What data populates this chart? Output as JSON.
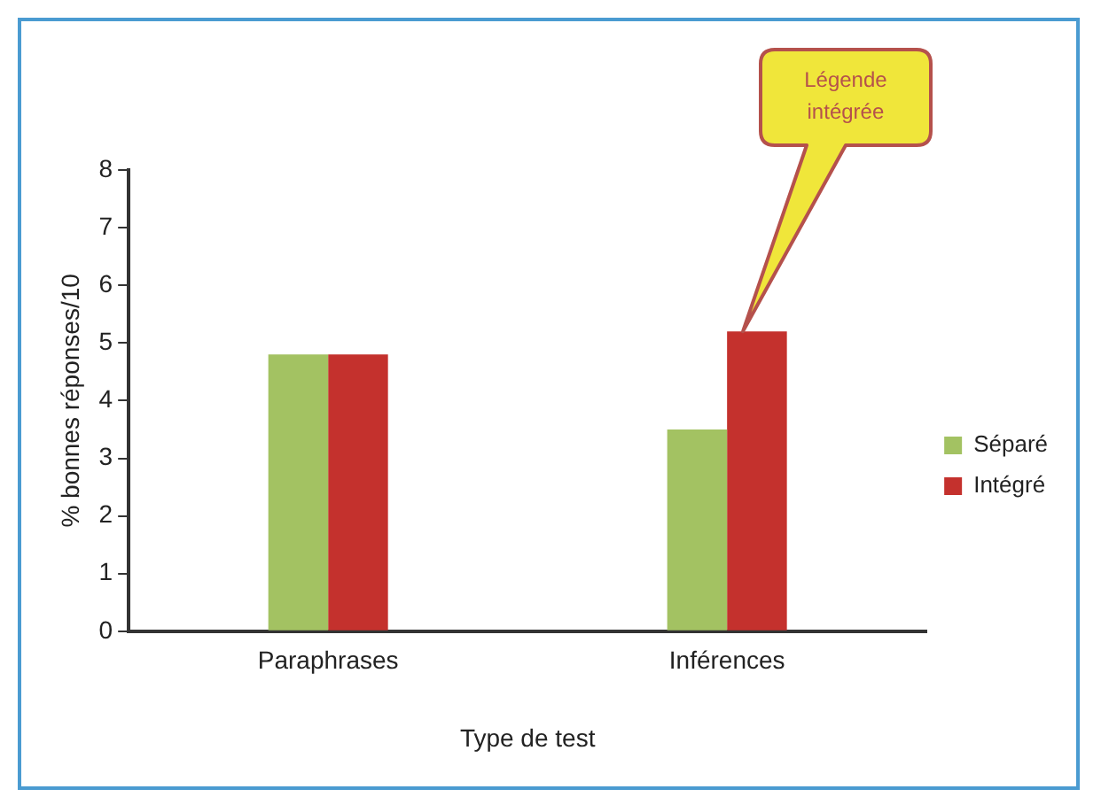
{
  "chart_data": {
    "type": "bar",
    "xlabel": "Type de test",
    "ylabel": "% bonnes réponses/10",
    "categories": [
      "Paraphrases",
      "Inférences"
    ],
    "series": [
      {
        "name": "Séparé",
        "color": "#a3c262",
        "values": [
          4.8,
          3.5
        ]
      },
      {
        "name": "Intégré",
        "color": "#c4312d",
        "values": [
          4.8,
          5.2
        ]
      }
    ],
    "ylim": [
      0,
      8
    ],
    "yticks": [
      0,
      1,
      2,
      3,
      4,
      5,
      6,
      7,
      8
    ],
    "grid": false,
    "legend": "right",
    "annotations": [
      "Légende intégrée"
    ]
  }
}
